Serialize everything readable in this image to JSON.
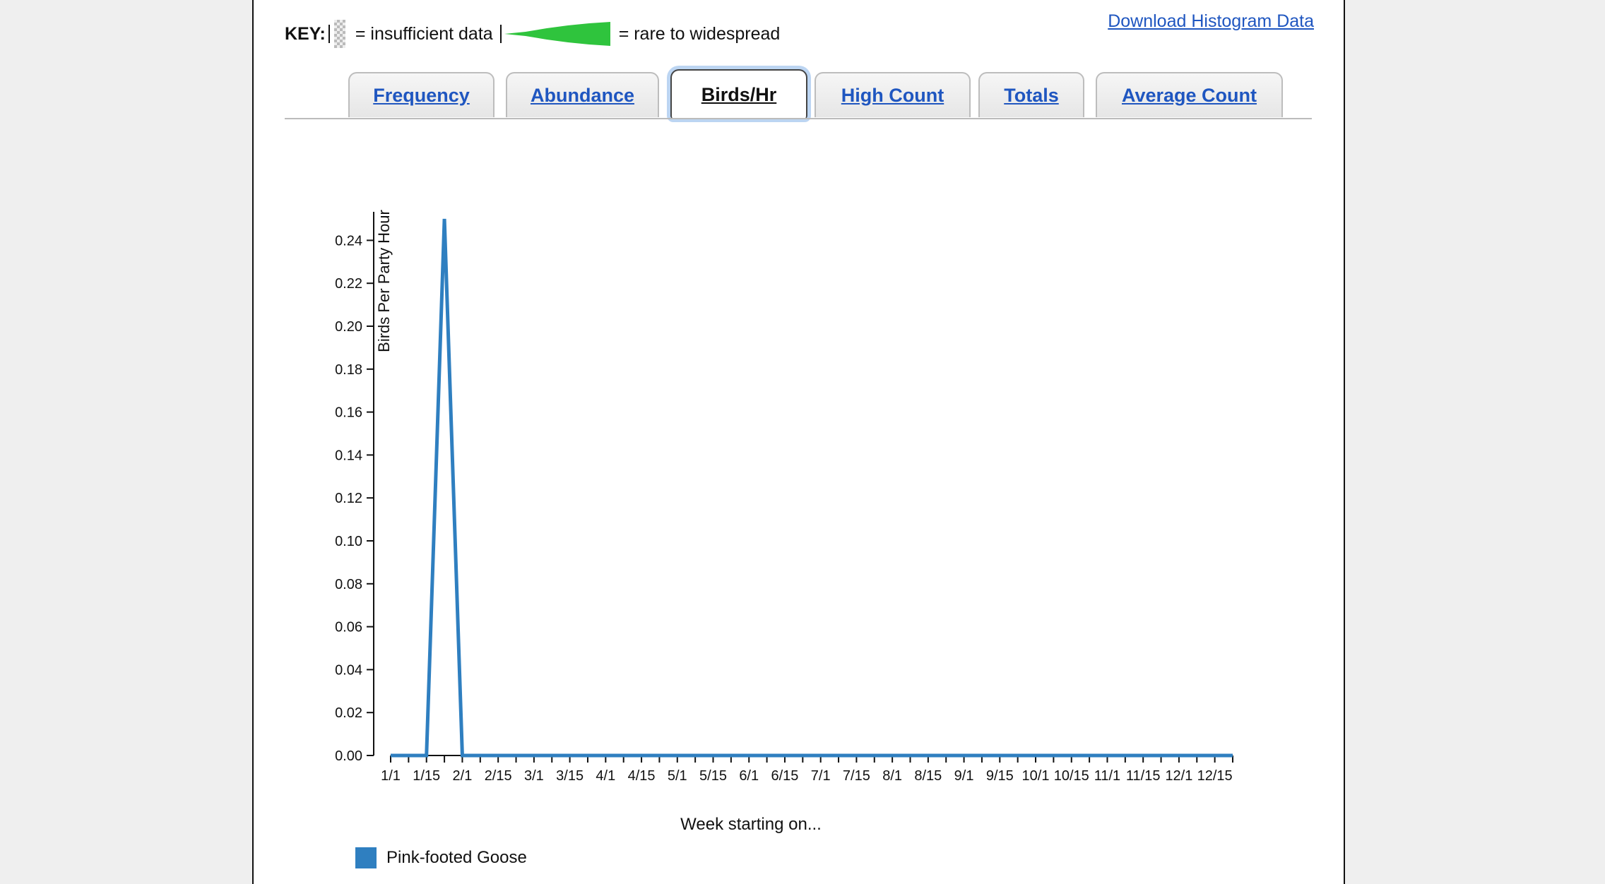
{
  "key": {
    "label": "KEY:",
    "insufficient_text": "= insufficient data",
    "rare_text": "= rare to widespread"
  },
  "download_link": "Download Histogram Data",
  "tabs": [
    {
      "label": "Frequency",
      "active": false
    },
    {
      "label": "Abundance",
      "active": false
    },
    {
      "label": "Birds/Hr",
      "active": true
    },
    {
      "label": "High Count",
      "active": false
    },
    {
      "label": "Totals",
      "active": false
    },
    {
      "label": "Average Count",
      "active": false
    }
  ],
  "colors": {
    "series": "#2f7fc0",
    "link": "#1f56c0",
    "key_green": "#2fc43d"
  },
  "chart_data": {
    "type": "line",
    "ylabel": "Birds Per Party Hour",
    "xlabel": "Week starting on...",
    "ylim": [
      0,
      0.25
    ],
    "yticks": [
      "0.00",
      "0.02",
      "0.04",
      "0.06",
      "0.08",
      "0.10",
      "0.12",
      "0.14",
      "0.16",
      "0.18",
      "0.20",
      "0.22",
      "0.24"
    ],
    "x_tick_labels": [
      "1/1",
      "1/15",
      "2/1",
      "2/15",
      "3/1",
      "3/15",
      "4/1",
      "4/15",
      "5/1",
      "5/15",
      "6/1",
      "6/15",
      "7/1",
      "7/15",
      "8/1",
      "8/15",
      "9/1",
      "9/15",
      "10/1",
      "10/15",
      "11/1",
      "11/15",
      "12/1",
      "12/15"
    ],
    "week_count": 48,
    "series": [
      {
        "name": "Pink-footed Goose",
        "values": [
          0,
          0,
          0,
          0.25,
          0,
          0,
          0,
          0,
          0,
          0,
          0,
          0,
          0,
          0,
          0,
          0,
          0,
          0,
          0,
          0,
          0,
          0,
          0,
          0,
          0,
          0,
          0,
          0,
          0,
          0,
          0,
          0,
          0,
          0,
          0,
          0,
          0,
          0,
          0,
          0,
          0,
          0,
          0,
          0,
          0,
          0,
          0,
          0
        ]
      }
    ]
  }
}
